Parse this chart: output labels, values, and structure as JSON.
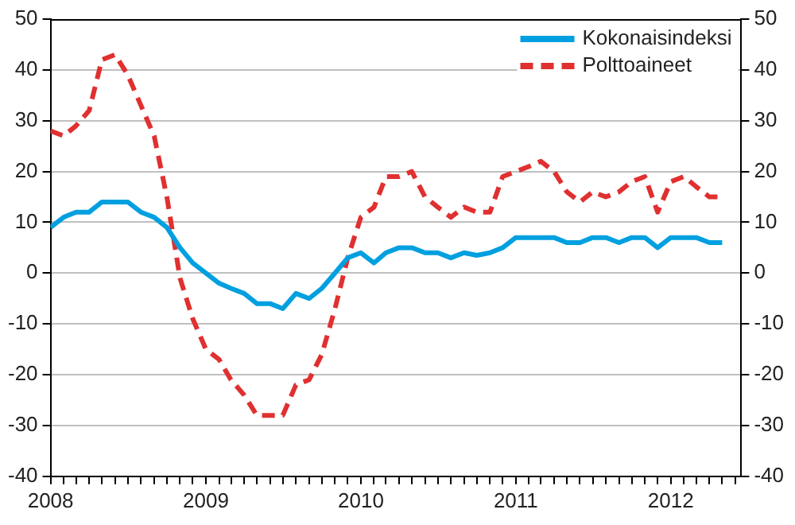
{
  "chart_data": {
    "type": "line",
    "x": [
      "2008-01",
      "2008-02",
      "2008-03",
      "2008-04",
      "2008-05",
      "2008-06",
      "2008-07",
      "2008-08",
      "2008-09",
      "2008-10",
      "2008-11",
      "2008-12",
      "2009-01",
      "2009-02",
      "2009-03",
      "2009-04",
      "2009-05",
      "2009-06",
      "2009-07",
      "2009-08",
      "2009-09",
      "2009-10",
      "2009-11",
      "2009-12",
      "2010-01",
      "2010-02",
      "2010-03",
      "2010-04",
      "2010-05",
      "2010-06",
      "2010-07",
      "2010-08",
      "2010-09",
      "2010-10",
      "2010-11",
      "2010-12",
      "2011-01",
      "2011-02",
      "2011-03",
      "2011-04",
      "2011-05",
      "2011-06",
      "2011-07",
      "2011-08",
      "2011-09",
      "2011-10",
      "2011-11",
      "2011-12",
      "2012-01",
      "2012-02",
      "2012-03",
      "2012-04",
      "2012-05"
    ],
    "series": [
      {
        "name": "Kokonaisindeksi",
        "color": "#00a0e0",
        "line_style": "solid",
        "values": [
          9,
          11,
          12,
          12,
          14,
          14,
          14,
          12,
          11,
          9,
          5,
          2,
          0,
          -2,
          -3,
          -4,
          -6,
          -6,
          -7,
          -4,
          -5,
          -3,
          0,
          3,
          4,
          2,
          4,
          5,
          5,
          4,
          4,
          3,
          4,
          3.5,
          4,
          5,
          7,
          7,
          7,
          7,
          6,
          6,
          7,
          7,
          6,
          7,
          7,
          5,
          7,
          7,
          7,
          6,
          6
        ]
      },
      {
        "name": "Polttoaineet",
        "color": "#e03030",
        "line_style": "dashed",
        "values": [
          28,
          27,
          29,
          32,
          42,
          43,
          39,
          33,
          27,
          15,
          -1,
          -9,
          -15,
          -17,
          -21,
          -24,
          -28,
          -28,
          -28,
          -22,
          -21,
          -16,
          -7,
          3,
          11,
          13,
          19,
          19,
          20,
          15,
          13,
          11,
          13,
          12,
          12,
          19,
          20,
          21,
          22,
          20,
          16,
          14,
          16,
          15,
          16,
          18,
          19,
          12,
          18,
          19,
          17,
          15,
          15
        ]
      }
    ],
    "xlim": [
      "2008-01",
      "2012-06-15"
    ],
    "xticks": [
      {
        "value": "2008-01",
        "label": "2008"
      },
      {
        "value": "2008-02",
        "label": null
      },
      {
        "value": "2008-03",
        "label": null
      },
      {
        "value": "2008-04",
        "label": null
      },
      {
        "value": "2008-05",
        "label": null
      },
      {
        "value": "2008-06",
        "label": null
      },
      {
        "value": "2008-07",
        "label": null
      },
      {
        "value": "2008-08",
        "label": null
      },
      {
        "value": "2008-09",
        "label": null
      },
      {
        "value": "2008-10",
        "label": null
      },
      {
        "value": "2008-11",
        "label": null
      },
      {
        "value": "2008-12",
        "label": null
      },
      {
        "value": "2009-01",
        "label": "2009"
      },
      {
        "value": "2009-02",
        "label": null
      },
      {
        "value": "2009-03",
        "label": null
      },
      {
        "value": "2009-04",
        "label": null
      },
      {
        "value": "2009-05",
        "label": null
      },
      {
        "value": "2009-06",
        "label": null
      },
      {
        "value": "2009-07",
        "label": null
      },
      {
        "value": "2009-08",
        "label": null
      },
      {
        "value": "2009-09",
        "label": null
      },
      {
        "value": "2009-10",
        "label": null
      },
      {
        "value": "2009-11",
        "label": null
      },
      {
        "value": "2009-12",
        "label": null
      },
      {
        "value": "2010-01",
        "label": "2010"
      },
      {
        "value": "2010-02",
        "label": null
      },
      {
        "value": "2010-03",
        "label": null
      },
      {
        "value": "2010-04",
        "label": null
      },
      {
        "value": "2010-05",
        "label": null
      },
      {
        "value": "2010-06",
        "label": null
      },
      {
        "value": "2010-07",
        "label": null
      },
      {
        "value": "2010-08",
        "label": null
      },
      {
        "value": "2010-09",
        "label": null
      },
      {
        "value": "2010-10",
        "label": null
      },
      {
        "value": "2010-11",
        "label": null
      },
      {
        "value": "2010-12",
        "label": null
      },
      {
        "value": "2011-01",
        "label": "2011"
      },
      {
        "value": "2011-02",
        "label": null
      },
      {
        "value": "2011-03",
        "label": null
      },
      {
        "value": "2011-04",
        "label": null
      },
      {
        "value": "2011-05",
        "label": null
      },
      {
        "value": "2011-06",
        "label": null
      },
      {
        "value": "2011-07",
        "label": null
      },
      {
        "value": "2011-08",
        "label": null
      },
      {
        "value": "2011-09",
        "label": null
      },
      {
        "value": "2011-10",
        "label": null
      },
      {
        "value": "2011-11",
        "label": null
      },
      {
        "value": "2011-12",
        "label": null
      },
      {
        "value": "2012-01",
        "label": "2012"
      },
      {
        "value": "2012-02",
        "label": null
      },
      {
        "value": "2012-03",
        "label": null
      },
      {
        "value": "2012-04",
        "label": null
      },
      {
        "value": "2012-05",
        "label": null
      },
      {
        "value": "2012-06",
        "label": null
      }
    ],
    "ylim": [
      -40,
      50
    ],
    "yticks": [
      -40,
      -30,
      -20,
      -10,
      0,
      10,
      20,
      30,
      40,
      50
    ],
    "y2lim": [
      -40,
      50
    ],
    "y2ticks": [
      -40,
      -30,
      -20,
      -10,
      0,
      10,
      20,
      30,
      40,
      50
    ],
    "grid": "y",
    "legend": "top right",
    "marker": "none"
  }
}
